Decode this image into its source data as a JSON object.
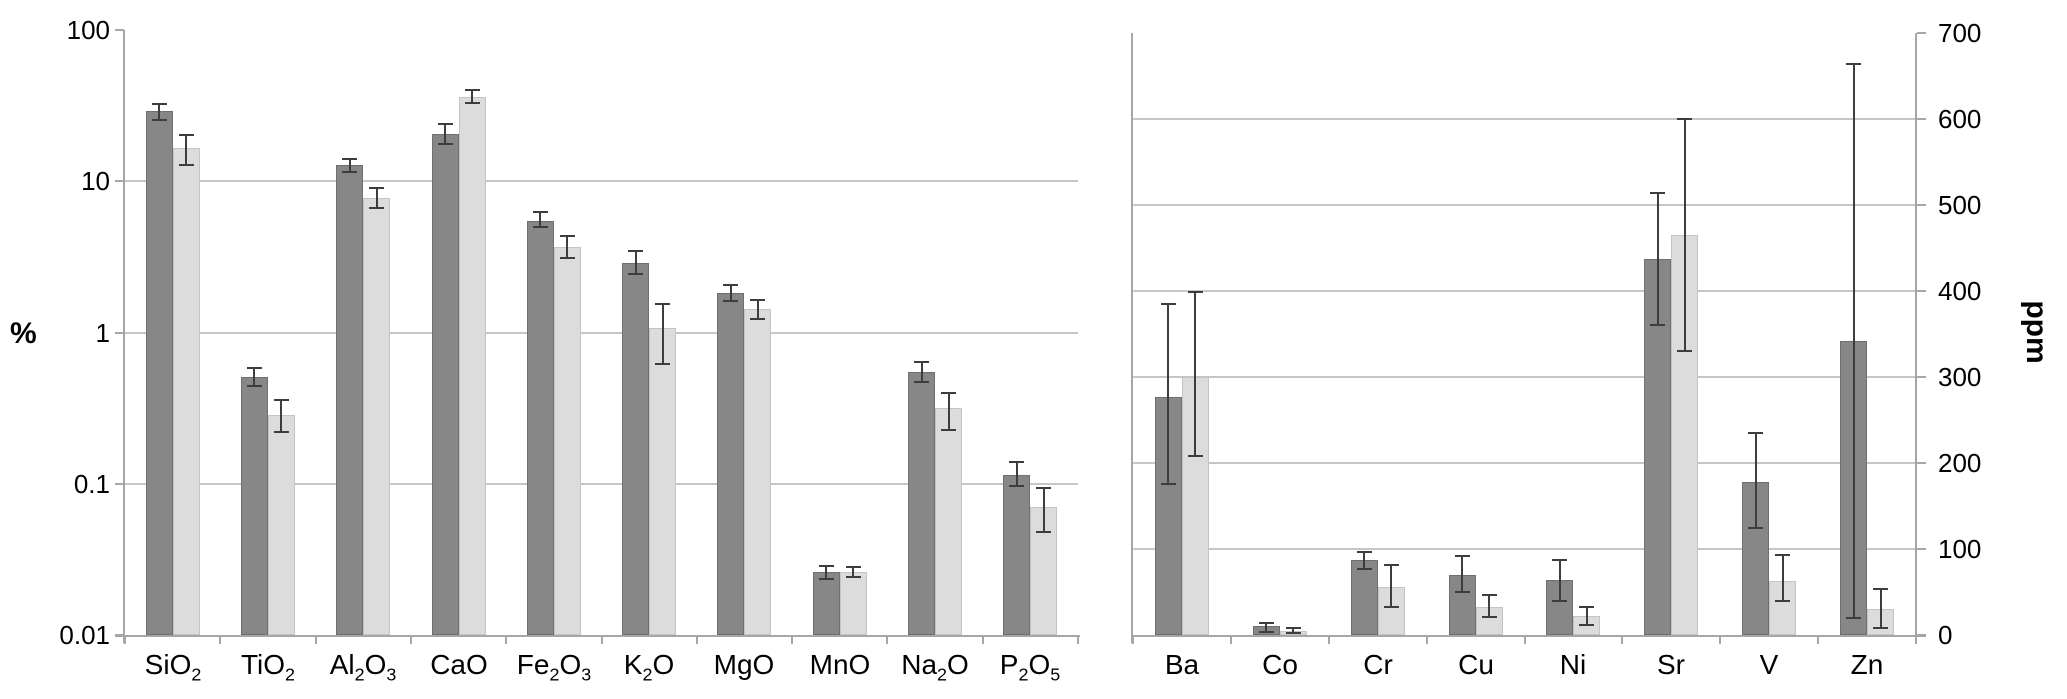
{
  "colors": {
    "bar_dark": "#878787",
    "bar_dark_border": "#6f6f6f",
    "bar_light": "#dcdcdc",
    "bar_light_border": "#c4c4c4",
    "error_bar": "#3d3d3d",
    "gridline": "#c6c6c6",
    "axis": "#a6a6a6",
    "text": "#000000",
    "background": "#ffffff"
  },
  "chart_data": [
    {
      "type": "bar",
      "title": "",
      "xlabel": "",
      "ylabel": "%",
      "y_axis_side": "left",
      "y_scale": "log",
      "ylim": [
        0.01,
        100
      ],
      "grid": true,
      "legend": "none",
      "y_ticks": [
        {
          "v": 100,
          "label": "100"
        },
        {
          "v": 10,
          "label": "10"
        },
        {
          "v": 1,
          "label": "1"
        },
        {
          "v": 0.1,
          "label": "0.1"
        },
        {
          "v": 0.01,
          "label": "0.01"
        }
      ],
      "categories": [
        "SiO_2",
        "TiO_2",
        "Al_2O_3",
        "CaO",
        "Fe_2O_3",
        "K_2O",
        "MgO",
        "MnO",
        "Na_2O",
        "P_2O_5"
      ],
      "series": [
        {
          "name": "dark",
          "values": [
            29,
            0.51,
            12.9,
            20.4,
            5.5,
            2.9,
            1.83,
            0.026,
            0.55,
            0.115
          ],
          "err_lo": [
            25.5,
            0.44,
            11.5,
            17.5,
            5.0,
            2.45,
            1.61,
            0.0235,
            0.47,
            0.097
          ],
          "err_hi": [
            32.5,
            0.58,
            14.0,
            23.8,
            6.25,
            3.45,
            2.05,
            0.0285,
            0.64,
            0.14
          ]
        },
        {
          "name": "light",
          "values": [
            16.5,
            0.285,
            7.8,
            36.0,
            3.7,
            1.07,
            1.44,
            0.026,
            0.315,
            0.07
          ],
          "err_lo": [
            12.8,
            0.22,
            6.7,
            33.0,
            3.1,
            0.62,
            1.23,
            0.024,
            0.225,
            0.048
          ],
          "err_hi": [
            20.2,
            0.36,
            9.0,
            40.2,
            4.35,
            1.55,
            1.65,
            0.028,
            0.4,
            0.094
          ]
        }
      ]
    },
    {
      "type": "bar",
      "title": "",
      "xlabel": "",
      "ylabel": "ppm",
      "y_axis_side": "right",
      "y_scale": "linear",
      "ylim": [
        0,
        700
      ],
      "grid": true,
      "legend": "none",
      "y_ticks": [
        {
          "v": 700,
          "label": "700"
        },
        {
          "v": 600,
          "label": "600"
        },
        {
          "v": 500,
          "label": "500"
        },
        {
          "v": 400,
          "label": "400"
        },
        {
          "v": 300,
          "label": "300"
        },
        {
          "v": 200,
          "label": "200"
        },
        {
          "v": 100,
          "label": "100"
        },
        {
          "v": 0,
          "label": "0"
        }
      ],
      "categories": [
        "Ba",
        "Co",
        "Cr",
        "Cu",
        "Ni",
        "Sr",
        "V",
        "Zn"
      ],
      "series": [
        {
          "name": "dark",
          "values": [
            277,
            10,
            87,
            70,
            64,
            437,
            178,
            342
          ],
          "err_lo": [
            176,
            4,
            77,
            50,
            39,
            360,
            124,
            20
          ],
          "err_hi": [
            385,
            14,
            97,
            92,
            87,
            514,
            235,
            664
          ]
        },
        {
          "name": "light",
          "values": [
            300,
            5,
            56,
            33,
            22,
            465,
            63,
            30
          ],
          "err_lo": [
            208,
            2,
            32,
            21,
            12,
            330,
            40,
            8
          ],
          "err_hi": [
            399,
            8,
            81,
            46,
            32,
            600,
            93,
            54
          ]
        }
      ]
    }
  ]
}
